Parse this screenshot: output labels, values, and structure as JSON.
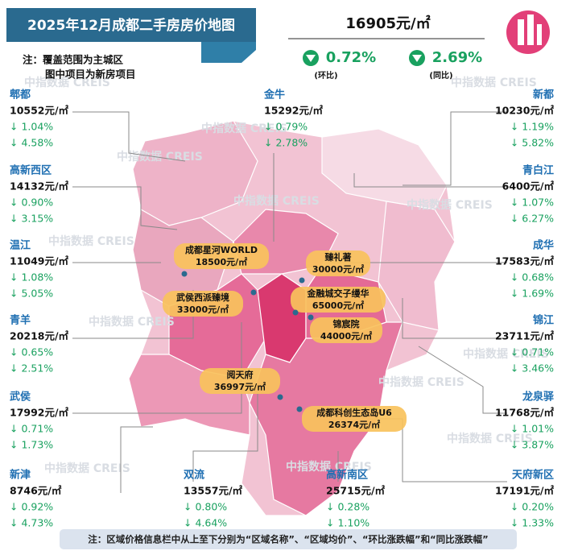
{
  "header": {
    "title": "2025年12月成都二手房房价地图",
    "notes": [
      "注：覆盖范围为主城区",
      "图中项目为新房项目"
    ]
  },
  "summary": {
    "price": "16905元/㎡",
    "mom": "0.72%",
    "mom_label": "(环比)",
    "yoy": "2.69%",
    "yoy_label": "(同比)"
  },
  "districts": [
    {
      "name": "郫都",
      "price": "10552元/㎡",
      "mom": "↓ 1.04%",
      "yoy": "↓ 4.58%"
    },
    {
      "name": "高新西区",
      "price": "14132元/㎡",
      "mom": "↓ 0.90%",
      "yoy": "↓ 3.15%"
    },
    {
      "name": "温江",
      "price": "11049元/㎡",
      "mom": "↓ 1.08%",
      "yoy": "↓ 5.05%"
    },
    {
      "name": "青羊",
      "price": "20218元/㎡",
      "mom": "↓ 0.65%",
      "yoy": "↓ 2.51%"
    },
    {
      "name": "武侯",
      "price": "17992元/㎡",
      "mom": "↓ 0.71%",
      "yoy": "↓ 1.73%"
    },
    {
      "name": "新津",
      "price": "8746元/㎡",
      "mom": "↓ 0.92%",
      "yoy": "↓ 4.73%"
    },
    {
      "name": "金牛",
      "price": "15292元/㎡",
      "mom": "↓ 0.79%",
      "yoy": "↓ 2.78%"
    },
    {
      "name": "双流",
      "price": "13557元/㎡",
      "mom": "↓ 0.80%",
      "yoy": "↓ 4.64%"
    },
    {
      "name": "高新南区",
      "price": "25715元/㎡",
      "mom": "↓ 0.28%",
      "yoy": "↓ 1.10%"
    },
    {
      "name": "新都",
      "price": "10230元/㎡",
      "mom": "↓ 1.19%",
      "yoy": "↓ 5.82%"
    },
    {
      "name": "青白江",
      "price": "6400元/㎡",
      "mom": "↓ 1.07%",
      "yoy": "↓ 6.27%"
    },
    {
      "name": "成华",
      "price": "17583元/㎡",
      "mom": "↓ 0.68%",
      "yoy": "↓ 1.69%"
    },
    {
      "name": "锦江",
      "price": "23711元/㎡",
      "mom": "↓ 0.71%",
      "yoy": "↓ 3.46%"
    },
    {
      "name": "龙泉驿",
      "price": "11768元/㎡",
      "mom": "↓ 1.01%",
      "yoy": "↓ 3.87%"
    },
    {
      "name": "天府新区",
      "price": "17191元/㎡",
      "mom": "↓ 0.20%",
      "yoy": "↓ 1.33%"
    }
  ],
  "projects": [
    {
      "name": "成都星河WORLD",
      "price": "18500元/㎡"
    },
    {
      "name": "臻礼著",
      "price": "30000元/㎡"
    },
    {
      "name": "武侯西派臻境",
      "price": "33000元/㎡"
    },
    {
      "name": "金融城交子缦华",
      "price": "65000元/㎡"
    },
    {
      "name": "锦宸院",
      "price": "44000元/㎡"
    },
    {
      "name": "阅天府",
      "price": "36997元/㎡"
    },
    {
      "name": "成都科创生态岛U6",
      "price": "26374元/㎡"
    }
  ],
  "watermark": "中指数据 CREIS",
  "footer": "注：区域价格信息栏中从上至下分别为“区域名称”、“区域均价”、“环比涨跌幅”和“同比涨跌幅”"
}
